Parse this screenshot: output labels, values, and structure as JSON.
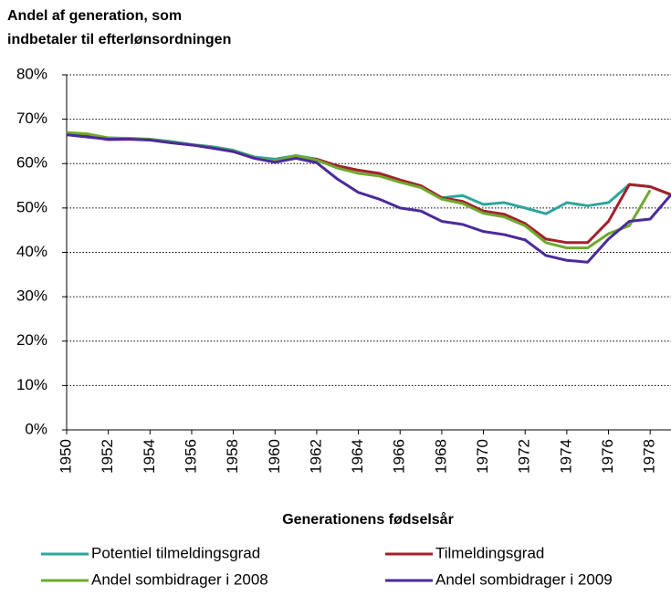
{
  "chart_data": {
    "type": "line",
    "title": [
      "Andel af generation, som",
      "indbetaler til efterlønsordningen"
    ],
    "x_label": "Generationens fødselsår",
    "x": [
      1950,
      1951,
      1952,
      1953,
      1954,
      1955,
      1956,
      1957,
      1958,
      1959,
      1960,
      1961,
      1962,
      1963,
      1964,
      1965,
      1966,
      1967,
      1968,
      1969,
      1970,
      1971,
      1972,
      1973,
      1974,
      1975,
      1976,
      1977,
      1978,
      1979
    ],
    "xlim": [
      1950,
      1979
    ],
    "xticks": [
      1950,
      1952,
      1954,
      1956,
      1958,
      1960,
      1962,
      1964,
      1966,
      1968,
      1970,
      1972,
      1974,
      1976,
      1978
    ],
    "ylim": [
      0,
      80
    ],
    "yticks": [
      {
        "value": 0,
        "label": "0%"
      },
      {
        "value": 10,
        "label": "10%"
      },
      {
        "value": 20,
        "label": "20%"
      },
      {
        "value": 30,
        "label": "30%"
      },
      {
        "value": 40,
        "label": "40%"
      },
      {
        "value": 50,
        "label": "50%"
      },
      {
        "value": 60,
        "label": "60%"
      },
      {
        "value": 70,
        "label": "70%"
      },
      {
        "value": 80,
        "label": "80%"
      }
    ],
    "grid": true,
    "legend": "bottom",
    "series": [
      {
        "name": "Potentiel tilmeldingsgrad",
        "color": "#2ea59c",
        "values": [
          67,
          66.5,
          65.8,
          65.7,
          65.5,
          65,
          64.3,
          63.8,
          63,
          61.5,
          61,
          61.8,
          61,
          59.5,
          58.5,
          57.8,
          56.3,
          55,
          52.3,
          52.8,
          50.8,
          51.2,
          50,
          48.7,
          51.2,
          50.5,
          51.2,
          55.3,
          54.8,
          53
        ]
      },
      {
        "name": "Tilmeldingsgrad",
        "color": "#a3202a",
        "values": [
          66.5,
          66.2,
          65.4,
          65.5,
          65.4,
          64.7,
          64.2,
          63.5,
          62.7,
          61.3,
          60.5,
          61.3,
          61,
          59.5,
          58.5,
          57.8,
          56.3,
          55,
          52.3,
          51.5,
          49.3,
          48.6,
          46.5,
          43,
          42.2,
          42.2,
          47,
          55.3,
          54.8,
          53
        ]
      },
      {
        "name": "Andel sombidrager i 2008",
        "color": "#6ea92e",
        "values": [
          67,
          66.7,
          65.8,
          65.6,
          65.4,
          64.8,
          64.2,
          63.6,
          62.8,
          61.3,
          60.6,
          61.8,
          60.8,
          59,
          57.8,
          57.2,
          55.8,
          54.6,
          52,
          51,
          48.8,
          48,
          46,
          42.2,
          41,
          41,
          44.2,
          46,
          54,
          null
        ]
      },
      {
        "name": "Andel sombidrager i 2009",
        "color": "#4b2a9c",
        "values": [
          66.5,
          66,
          65.5,
          65.5,
          65.3,
          64.7,
          64.2,
          63.5,
          62.7,
          61.2,
          60.3,
          61.2,
          60.2,
          56.5,
          53.5,
          52,
          50,
          49.3,
          47,
          46.3,
          44.7,
          44,
          42.8,
          39.3,
          38.2,
          37.8,
          43,
          47,
          47.5,
          53
        ]
      }
    ]
  }
}
